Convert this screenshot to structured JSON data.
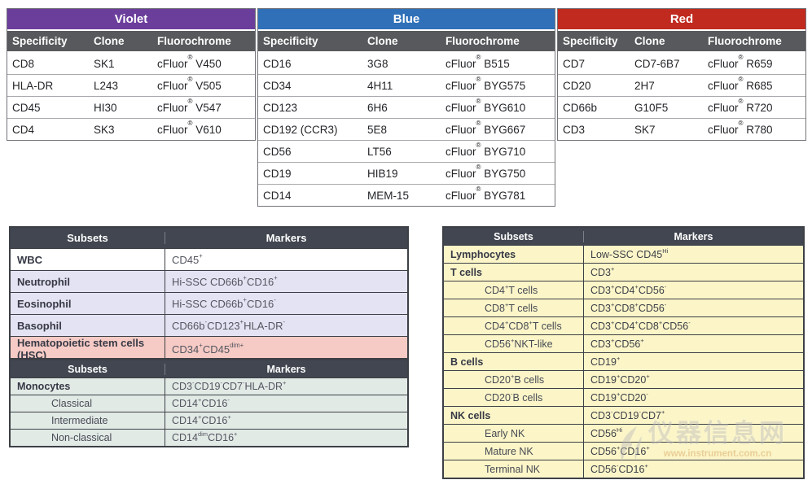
{
  "top_panels": [
    {
      "id": "violet",
      "title": "Violet",
      "color": "#6b3e9c",
      "columns": [
        "Specificity",
        "Clone",
        "Fluorochrome"
      ],
      "rows": [
        {
          "specificity": "CD8",
          "clone": "SK1",
          "fluorochrome": "cFluor{®} V450"
        },
        {
          "specificity": "HLA-DR",
          "clone": "L243",
          "fluorochrome": "cFluor{®} V505"
        },
        {
          "specificity": "CD45",
          "clone": "HI30",
          "fluorochrome": "cFluor{®} V547"
        },
        {
          "specificity": "CD4",
          "clone": "SK3",
          "fluorochrome": "cFluor{®} V610"
        }
      ]
    },
    {
      "id": "blue",
      "title": "Blue",
      "color": "#3070b8",
      "columns": [
        "Specificity",
        "Clone",
        "Fluorochrome"
      ],
      "rows": [
        {
          "specificity": "CD16",
          "clone": "3G8",
          "fluorochrome": "cFluor{®} B515"
        },
        {
          "specificity": "CD34",
          "clone": "4H11",
          "fluorochrome": "cFluor{®} BYG575"
        },
        {
          "specificity": "CD123",
          "clone": "6H6",
          "fluorochrome": "cFluor{®} BYG610"
        },
        {
          "specificity": "CD192 (CCR3)",
          "clone": "5E8",
          "fluorochrome": "cFluor{®} BYG667"
        },
        {
          "specificity": "CD56",
          "clone": "LT56",
          "fluorochrome": "cFluor{®} BYG710"
        },
        {
          "specificity": "CD19",
          "clone": "HIB19",
          "fluorochrome": "cFluor{®} BYG750"
        },
        {
          "specificity": "CD14",
          "clone": "MEM-15",
          "fluorochrome": "cFluor{®} BYG781"
        }
      ]
    },
    {
      "id": "red",
      "title": "Red",
      "color": "#c02a1f",
      "columns": [
        "Specificity",
        "Clone",
        "Fluorochrome"
      ],
      "rows": [
        {
          "specificity": "CD7",
          "clone": "CD7-6B7",
          "fluorochrome": "cFluor{®} R659"
        },
        {
          "specificity": "CD20",
          "clone": "2H7",
          "fluorochrome": "cFluor{®} R685"
        },
        {
          "specificity": "CD66b",
          "clone": "G10F5",
          "fluorochrome": "cFluor{®} R720"
        },
        {
          "specificity": "CD3",
          "clone": "SK7",
          "fluorochrome": "cFluor{®} R780"
        }
      ]
    }
  ],
  "subset_tables": [
    {
      "id": "wbc",
      "columns": [
        "Subsets",
        "Markers"
      ],
      "rows": [
        {
          "subset": "WBC",
          "markers": "CD45{+}",
          "level": 0,
          "bg": "#ffffff"
        },
        {
          "subset": "Neutrophil",
          "markers": "Hi-SSC CD66b{+} CD16{+}",
          "level": 0,
          "bg": "#e4e3f3"
        },
        {
          "subset": "Eosinophil",
          "markers": "Hi-SSC CD66b{+} CD16{-}",
          "level": 0,
          "bg": "#e4e3f3"
        },
        {
          "subset": "Basophil",
          "markers": "CD66b{-} CD123{+} HLA-DR{-}",
          "level": 0,
          "bg": "#e4e3f3"
        },
        {
          "subset": "Hematopoietic stem cells (HSC)",
          "markers": "CD34{+} CD45{dim+}",
          "level": 0,
          "bg": "#f6cbc5"
        }
      ]
    },
    {
      "id": "mono",
      "columns": [
        "Subsets",
        "Markers"
      ],
      "rows": [
        {
          "subset": "Monocytes",
          "markers": "CD3{-} CD19{-} CD7{-} HLA-DR{+}",
          "level": 0,
          "bg": "#e2eae6"
        },
        {
          "subset": "Classical",
          "markers": "CD14{+} CD16{-}",
          "level": 1,
          "bg": "#e2eae6"
        },
        {
          "subset": "Intermediate",
          "markers": "CD14{+} CD16{+}",
          "level": 1,
          "bg": "#e2eae6"
        },
        {
          "subset": "Non-classical",
          "markers": "CD14{dim} CD16{+}",
          "level": 1,
          "bg": "#e2eae6"
        }
      ]
    },
    {
      "id": "lymph",
      "columns": [
        "Subsets",
        "Markers"
      ],
      "rows": [
        {
          "subset": "Lymphocytes",
          "markers": "Low-SSC CD45{Hi}",
          "level": 0,
          "bg": "#fbf5c8"
        },
        {
          "subset": "T cells",
          "markers": "CD3{+}",
          "level": 0,
          "bg": "#fbf5c8"
        },
        {
          "subset": "CD4{+} T cells",
          "markers": "CD3{+} CD4{+} CD56{-}",
          "level": 1,
          "bg": "#fbf5c8"
        },
        {
          "subset": "CD8{+} T cells",
          "markers": "CD3{+} CD8{+} CD56{-}",
          "level": 1,
          "bg": "#fbf5c8"
        },
        {
          "subset": "CD4{+}CD8{+} T cells",
          "markers": "CD3{+} CD4{+} CD8{+} CD56{-}",
          "level": 1,
          "bg": "#fbf5c8"
        },
        {
          "subset": "CD56{+}NKT-like",
          "markers": "CD3{+} CD56{+}",
          "level": 1,
          "bg": "#fbf5c8"
        },
        {
          "subset": "B cells",
          "markers": "CD19{+}",
          "level": 0,
          "bg": "#fbf5c8"
        },
        {
          "subset": "CD20{+} B cells",
          "markers": "CD19{+} CD20{+}",
          "level": 1,
          "bg": "#fbf5c8"
        },
        {
          "subset": "CD20{-} B cells",
          "markers": "CD19{+} CD20{-}",
          "level": 1,
          "bg": "#fbf5c8"
        },
        {
          "subset": "NK cells",
          "markers": "CD3{-} CD19{-} CD7{+}",
          "level": 0,
          "bg": "#fbf5c8"
        },
        {
          "subset": "Early NK",
          "markers": "CD56{Hi}",
          "level": 1,
          "bg": "#fbf5c8"
        },
        {
          "subset": "Mature NK",
          "markers": "CD56{+}CD16{+}",
          "level": 1,
          "bg": "#fbf5c8"
        },
        {
          "subset": "Terminal NK",
          "markers": "CD56{-}CD16{+}",
          "level": 1,
          "bg": "#fbf5c8"
        }
      ]
    }
  ],
  "watermark": {
    "text_cn": "仪器信息网",
    "url": "www.instrument.com.cn"
  }
}
